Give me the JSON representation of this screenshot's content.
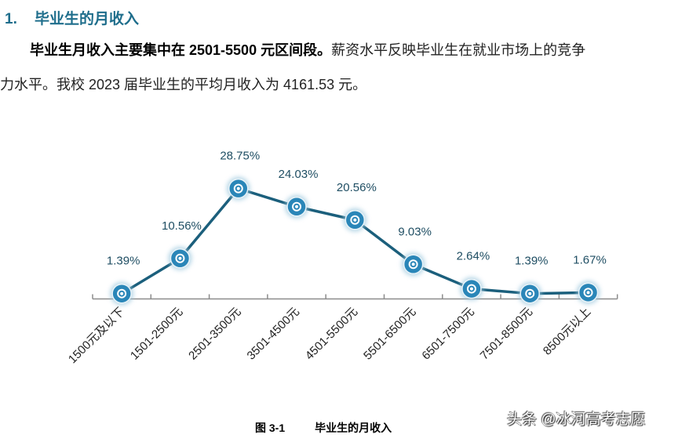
{
  "section": {
    "number": "1.",
    "title": "毕业生的月收入"
  },
  "paragraph": {
    "bold": "毕业生月收入主要集中在 2501-5500 元区间段。",
    "line1_rest": "薪资水平反映毕业生在就业市场上的竞争",
    "line2": "力水平。我校 2023 届毕业生的平均月收入为 4161.53 元。"
  },
  "caption": {
    "figure": "图 3-1",
    "title": "毕业生的月收入"
  },
  "watermark": "头条 @冰河高考志愿",
  "colors": {
    "line": "#1b5f7c",
    "marker": "#2a86b8",
    "label": "#1f4e63"
  },
  "chart_data": {
    "type": "line",
    "title": "",
    "xlabel": "",
    "ylabel": "",
    "categories": [
      "1500元及以下",
      "1501-2500元",
      "2501-3500元",
      "3501-4500元",
      "4501-5500元",
      "5501-6500元",
      "6501-7500元",
      "7501-8500元",
      "8500元以上"
    ],
    "values": [
      1.39,
      10.56,
      28.75,
      24.03,
      20.56,
      9.03,
      2.64,
      1.39,
      1.67
    ],
    "data_labels": [
      "1.39%",
      "10.56%",
      "28.75%",
      "24.03%",
      "20.56%",
      "9.03%",
      "2.64%",
      "1.39%",
      "1.67%"
    ],
    "ylim": [
      0,
      30
    ],
    "grid": false,
    "legend": "none"
  }
}
